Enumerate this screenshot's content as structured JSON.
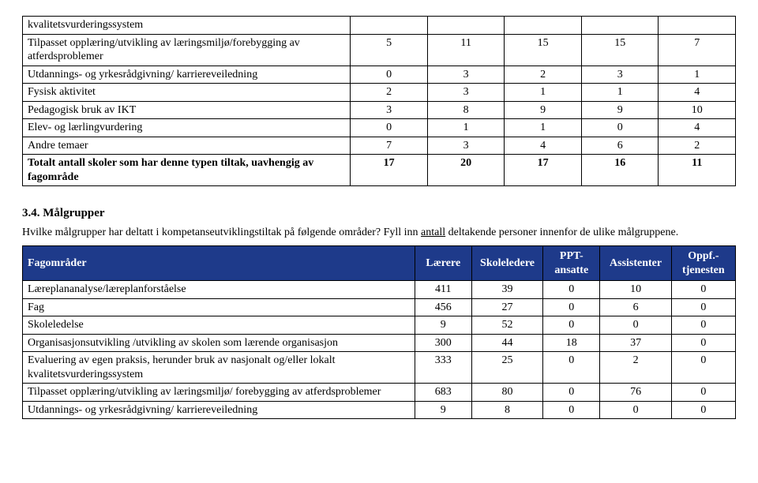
{
  "table1": {
    "col_widths": [
      "46%",
      "10.8%",
      "10.8%",
      "10.8%",
      "10.8%",
      "10.8%"
    ],
    "rows": [
      {
        "label": "kvalitetsvurderingssystem",
        "vals": [
          "",
          "",
          "",
          "",
          ""
        ],
        "bold": false
      },
      {
        "label": "Tilpasset opplæring/utvikling av læringsmiljø/forebygging av atferdsproblemer",
        "vals": [
          "5",
          "11",
          "15",
          "15",
          "7"
        ],
        "bold": false
      },
      {
        "label": "Utdannings- og yrkesrådgivning/ karriereveiledning",
        "vals": [
          "0",
          "3",
          "2",
          "3",
          "1"
        ],
        "bold": false
      },
      {
        "label": "Fysisk aktivitet",
        "vals": [
          "2",
          "3",
          "1",
          "1",
          "4"
        ],
        "bold": false
      },
      {
        "label": "Pedagogisk bruk av IKT",
        "vals": [
          "3",
          "8",
          "9",
          "9",
          "10"
        ],
        "bold": false
      },
      {
        "label": "Elev- og lærlingvurdering",
        "vals": [
          "0",
          "1",
          "1",
          "0",
          "4"
        ],
        "bold": false
      },
      {
        "label": "Andre temaer",
        "vals": [
          "7",
          "3",
          "4",
          "6",
          "2"
        ],
        "bold": false
      },
      {
        "label": "Totalt antall skoler som har denne typen tiltak, uavhengig av fagområde",
        "vals": [
          "17",
          "20",
          "17",
          "16",
          "11"
        ],
        "bold": true
      }
    ]
  },
  "section": {
    "heading": "3.4. Målgrupper",
    "instruction_a": "Hvilke målgrupper har deltatt i kompetanseutviklingstiltak på følgende områder? Fyll inn ",
    "instruction_u": "antall",
    "instruction_b": " deltakende personer innenfor de ulike målgruppene."
  },
  "table2": {
    "col_widths": [
      "55%",
      "8%",
      "10%",
      "8%",
      "10%",
      "9%"
    ],
    "headers": [
      "Fagområder",
      "Lærere",
      "Skoleledere",
      "PPT-ansatte",
      "Assistenter",
      "Oppf.-tjenesten"
    ],
    "header_html": [
      "Fagområder",
      "Lærere",
      "Skoleledere",
      "PPT-<br>ansatte",
      "Assistenter",
      "Oppf.-<br>tjenesten"
    ],
    "rows": [
      {
        "label": "Læreplananalyse/læreplanforståelse",
        "vals": [
          "411",
          "39",
          "0",
          "10",
          "0"
        ]
      },
      {
        "label": "Fag",
        "vals": [
          "456",
          "27",
          "0",
          "6",
          "0"
        ]
      },
      {
        "label": "Skoleledelse",
        "vals": [
          "9",
          "52",
          "0",
          "0",
          "0"
        ]
      },
      {
        "label": "Organisasjonsutvikling /utvikling av skolen som lærende organisasjon",
        "vals": [
          "300",
          "44",
          "18",
          "37",
          "0"
        ]
      },
      {
        "label": "Evaluering av egen praksis, herunder bruk av nasjonalt og/eller lokalt kvalitetsvurderingssystem",
        "vals": [
          "333",
          "25",
          "0",
          "2",
          "0"
        ]
      },
      {
        "label": "Tilpasset opplæring/utvikling av læringsmiljø/ forebygging av atferdsproblemer",
        "vals": [
          "683",
          "80",
          "0",
          "76",
          "0"
        ]
      },
      {
        "label": "Utdannings- og yrkesrådgivning/ karriereveiledning",
        "vals": [
          "9",
          "8",
          "0",
          "0",
          "0"
        ]
      }
    ]
  },
  "colors": {
    "header_bg": "#1e3a8a",
    "header_fg": "#ffffff",
    "border": "#000000",
    "background": "#ffffff",
    "text": "#000000"
  }
}
